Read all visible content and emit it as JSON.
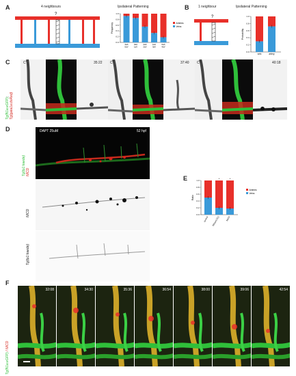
{
  "panelA": {
    "letter": "A",
    "schematic_title": "4 neighbours",
    "chart_title": "Ipsilateral  Patterning",
    "question_mark": "?"
  },
  "panelB": {
    "letter": "B",
    "schematic_title": "1 neighbour",
    "chart_title": "Ipsilateral  Patterning",
    "question_mark": "?"
  },
  "panelC": {
    "letter": "C",
    "side_label_line1": "Tg(fli1a:eGFP)",
    "side_label_line2": "Tg(gata1a:dsRed)",
    "frames": [
      {
        "prime": "C'",
        "time": "35:22"
      },
      {
        "prime": "C''",
        "time": "37:40"
      },
      {
        "prime": "C'''",
        "time": "40:18"
      }
    ]
  },
  "panelD": {
    "letter": "D",
    "header_left": "DAPT 25uM",
    "header_right": "52 hpf",
    "label_top_line1": "Tg(tp1:kaede)",
    "label_top_line2": "NICD",
    "label_mid": "NICD",
    "label_bot": "Tg(tp1:kaede)"
  },
  "panelE": {
    "letter": "E"
  },
  "panelF": {
    "letter": "F",
    "side_label_a": "Tg(fli1a:eGFP)",
    "side_label_b": "/ NICD",
    "times": [
      "32:08",
      "34:30",
      "35:36",
      "36:54",
      "38:00",
      "39:06",
      "42:54"
    ]
  },
  "colors": {
    "artery_red": "#e8302a",
    "vein_blue": "#3a9ad9",
    "green": "#2fbf3a",
    "red_signal": "#d4241c"
  },
  "chart_data": [
    {
      "id": "A",
      "type": "bar",
      "stacked": true,
      "title": "Ipsilateral  Patterning",
      "ylabel": "Frequency",
      "ylim": [
        0,
        1
      ],
      "yticks": [
        0,
        0.2,
        0.4,
        0.6,
        0.8,
        1.0
      ],
      "categories": [
        "4aA 0aV",
        "3aA 1aV",
        "2aA 2aV",
        "1aA 3aV",
        "0aA 4aV"
      ],
      "series": [
        {
          "name": "Veins",
          "color": "#3a9ad9",
          "values": [
            0.92,
            0.85,
            0.55,
            0.33,
            0.18
          ]
        },
        {
          "name": "Arteries",
          "color": "#e8302a",
          "values": [
            0.08,
            0.15,
            0.45,
            0.67,
            0.82
          ]
        }
      ],
      "legend": "right"
    },
    {
      "id": "B",
      "type": "bar",
      "stacked": true,
      "title": "Ipsilateral  Patterning",
      "ylabel": "Probability",
      "ylim": [
        0,
        1
      ],
      "yticks": [
        0,
        0.2,
        0.4,
        0.6,
        0.8,
        1.0
      ],
      "categories": [
        "vein",
        "artery"
      ],
      "series": [
        {
          "name": "Veins",
          "color": "#3a9ad9",
          "values": [
            0.3,
            0.72
          ]
        },
        {
          "name": "Arteries",
          "color": "#e8302a",
          "values": [
            0.7,
            0.28
          ]
        }
      ]
    },
    {
      "id": "E",
      "type": "bar",
      "stacked": true,
      "ylabel": "Ratio",
      "ylim": [
        0,
        1
      ],
      "yticks": [
        0,
        0.2,
        0.4,
        0.6,
        0.8,
        1.0
      ],
      "categories": [
        "control",
        "flt4(um131)",
        "NICD"
      ],
      "annotations": [
        "*",
        "*"
      ],
      "series": [
        {
          "name": "Veins",
          "color": "#3a9ad9",
          "values": [
            0.5,
            0.2,
            0.18
          ]
        },
        {
          "name": "Arteries",
          "color": "#e8302a",
          "values": [
            0.5,
            0.8,
            0.82
          ]
        }
      ],
      "legend": "right"
    }
  ]
}
